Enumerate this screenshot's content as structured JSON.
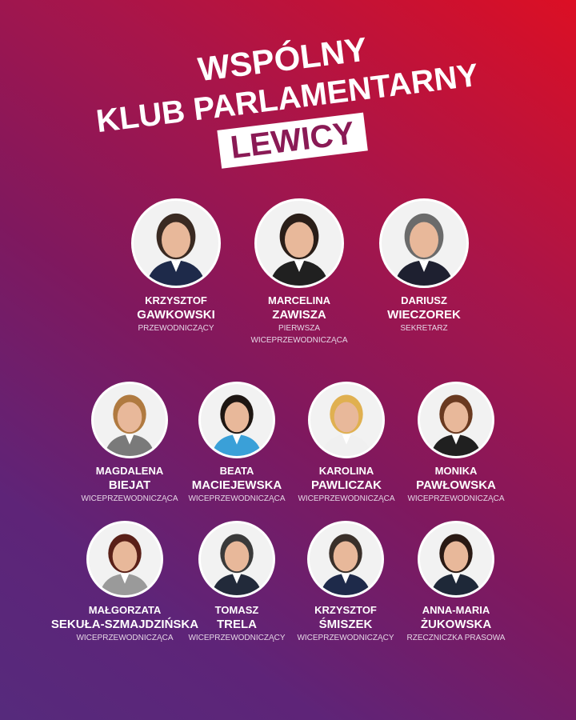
{
  "title": {
    "line1": "WSPÓLNY",
    "line2": "KLUB PARLAMENTARNY",
    "line3": "LEWICY"
  },
  "colors": {
    "bg_top_right": "#dc0f24",
    "bg_bottom_left": "#562a7c",
    "highlight_text": "#8a1a55"
  },
  "members": [
    {
      "first": "KRZYSZTOF",
      "last": "GAWKOWSKI",
      "role": "PRZEWODNICZĄCY"
    },
    {
      "first": "MARCELINA",
      "last": "ZAWISZA",
      "role": "PIERWSZA",
      "role2": "WICEPRZEWODNICZĄCA"
    },
    {
      "first": "DARIUSZ",
      "last": "WIECZOREK",
      "role": "SEKRETARZ"
    },
    {
      "first": "MAGDALENA",
      "last": "BIEJAT",
      "role": "WICEPRZEWODNICZĄCA"
    },
    {
      "first": "BEATA",
      "last": "MACIEJEWSKA",
      "role": "WICEPRZEWODNICZĄCA"
    },
    {
      "first": "KAROLINA",
      "last": "PAWLICZAK",
      "role": "WICEPRZEWODNICZĄCA"
    },
    {
      "first": "MONIKA",
      "last": "PAWŁOWSKA",
      "role": "WICEPRZEWODNICZĄCA"
    },
    {
      "first": "MAŁGORZATA",
      "last": "SEKUŁA-SZMAJDZIŃSKA",
      "role": "WICEPRZEWODNICZĄCA"
    },
    {
      "first": "TOMASZ",
      "last": "TRELA",
      "role": "WICEPRZEWODNICZĄCY"
    },
    {
      "first": "KRZYSZTOF",
      "last": "ŚMISZEK",
      "role": "WICEPRZEWODNICZĄCY"
    },
    {
      "first": "ANNA-MARIA",
      "last": "ŻUKOWSKA",
      "role": "RZECZNICZKA PRASOWA"
    }
  ]
}
